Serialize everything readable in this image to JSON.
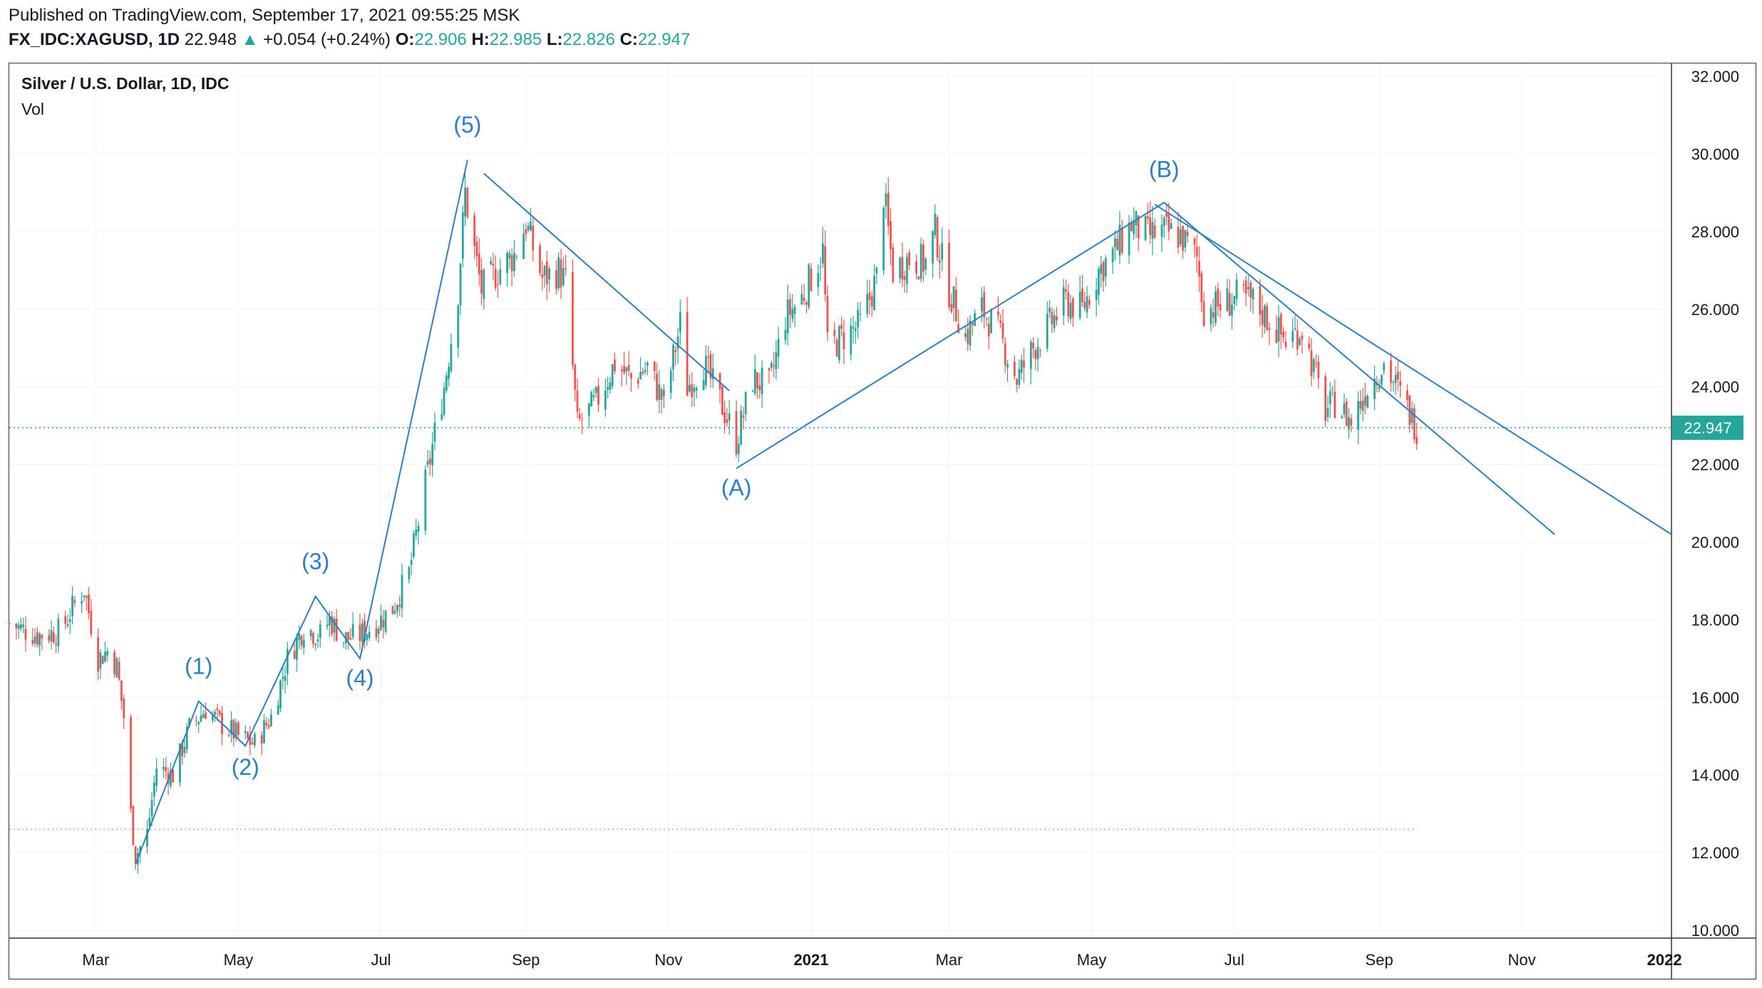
{
  "header": {
    "published": "Published on TradingView.com, September 17, 2021 09:55:25 MSK",
    "symbol_line": "FX_IDC:XAGUSD, 1D",
    "last": "22.948",
    "change_arrow": "▲",
    "change": "+0.054 (+0.24%)",
    "o_label": "O:",
    "o": "22.906",
    "h_label": "H:",
    "h": "22.985",
    "l_label": "L:",
    "l": "22.826",
    "c_label": "C:",
    "c": "22.947"
  },
  "legend": {
    "title": "Silver / U.S. Dollar, 1D, IDC",
    "vol": "Vol"
  },
  "colors": {
    "up": "#26a69a",
    "down": "#ef5350",
    "wave_line": "#2f7dc2",
    "wave_label": "#2f7dc2",
    "grid": "#f0f3fa",
    "price_line": "#26a69a",
    "lower_line": "#ef9a9a"
  },
  "chart_data": {
    "type": "candlestick",
    "symbol": "XAGUSD",
    "interval": "1D",
    "y_axis": {
      "min": 10,
      "max": 32,
      "ticks": [
        "32.000",
        "30.000",
        "28.000",
        "26.000",
        "24.000",
        "22.000",
        "20.000",
        "18.000",
        "16.000",
        "14.000",
        "12.000",
        "10.000"
      ]
    },
    "x_axis": {
      "labels": [
        {
          "text": "Mar",
          "date": "2020-03-01",
          "bold": false
        },
        {
          "text": "May",
          "date": "2020-05-01",
          "bold": false
        },
        {
          "text": "Jul",
          "date": "2020-07-01",
          "bold": false
        },
        {
          "text": "Sep",
          "date": "2020-09-01",
          "bold": false
        },
        {
          "text": "Nov",
          "date": "2020-11-01",
          "bold": false
        },
        {
          "text": "2021",
          "date": "2021-01-01",
          "bold": true
        },
        {
          "text": "Mar",
          "date": "2021-03-01",
          "bold": false
        },
        {
          "text": "May",
          "date": "2021-05-01",
          "bold": false
        },
        {
          "text": "Jul",
          "date": "2021-07-01",
          "bold": false
        },
        {
          "text": "Sep",
          "date": "2021-09-01",
          "bold": false
        },
        {
          "text": "Nov",
          "date": "2021-11-01",
          "bold": false
        },
        {
          "text": "2022",
          "date": "2022-01-01",
          "bold": true
        }
      ],
      "start": "2020-01-24",
      "end": "2022-01-04"
    },
    "last_price": 22.947,
    "last_price_label": "22.947",
    "lower_level": 12.6,
    "lower_level_end": "2021-09-17",
    "price_path": [
      [
        "2020-01-24",
        17.9
      ],
      [
        "2020-02-05",
        17.6
      ],
      [
        "2020-02-15",
        17.7
      ],
      [
        "2020-02-20",
        18.3
      ],
      [
        "2020-02-25",
        18.8
      ],
      [
        "2020-03-02",
        17.0
      ],
      [
        "2020-03-06",
        17.2
      ],
      [
        "2020-03-10",
        16.8
      ],
      [
        "2020-03-13",
        15.5
      ],
      [
        "2020-03-16",
        13.0
      ],
      [
        "2020-03-18",
        11.9
      ],
      [
        "2020-03-23",
        12.5
      ],
      [
        "2020-03-27",
        14.2
      ],
      [
        "2020-04-03",
        14.0
      ],
      [
        "2020-04-10",
        15.2
      ],
      [
        "2020-04-17",
        15.7
      ],
      [
        "2020-04-24",
        15.3
      ],
      [
        "2020-05-01",
        15.0
      ],
      [
        "2020-05-08",
        14.8
      ],
      [
        "2020-05-15",
        15.5
      ],
      [
        "2020-05-22",
        17.0
      ],
      [
        "2020-05-29",
        17.8
      ],
      [
        "2020-06-05",
        17.6
      ],
      [
        "2020-06-09",
        18.0
      ],
      [
        "2020-06-15",
        17.5
      ],
      [
        "2020-06-22",
        17.6
      ],
      [
        "2020-06-29",
        17.9
      ],
      [
        "2020-07-06",
        18.3
      ],
      [
        "2020-07-13",
        19.2
      ],
      [
        "2020-07-20",
        21.5
      ],
      [
        "2020-07-24",
        22.8
      ],
      [
        "2020-07-28",
        24.0
      ],
      [
        "2020-08-03",
        26.5
      ],
      [
        "2020-08-06",
        29.0
      ],
      [
        "2020-08-10",
        27.5
      ],
      [
        "2020-08-13",
        26.5
      ],
      [
        "2020-08-20",
        27.0
      ],
      [
        "2020-08-27",
        27.4
      ],
      [
        "2020-09-01",
        28.2
      ],
      [
        "2020-09-08",
        26.8
      ],
      [
        "2020-09-15",
        27.0
      ],
      [
        "2020-09-18",
        26.7
      ],
      [
        "2020-09-21",
        24.5
      ],
      [
        "2020-09-23",
        23.0
      ],
      [
        "2020-10-01",
        23.6
      ],
      [
        "2020-10-09",
        24.6
      ],
      [
        "2020-10-16",
        24.2
      ],
      [
        "2020-10-23",
        24.5
      ],
      [
        "2020-10-30",
        23.6
      ],
      [
        "2020-11-06",
        25.6
      ],
      [
        "2020-11-09",
        24.0
      ],
      [
        "2020-11-16",
        24.6
      ],
      [
        "2020-11-24",
        23.5
      ],
      [
        "2020-11-30",
        22.6
      ],
      [
        "2020-12-07",
        24.2
      ],
      [
        "2020-12-14",
        24.0
      ],
      [
        "2020-12-21",
        25.8
      ],
      [
        "2020-12-28",
        26.3
      ],
      [
        "2021-01-06",
        27.5
      ],
      [
        "2021-01-08",
        25.0
      ],
      [
        "2021-01-15",
        25.3
      ],
      [
        "2021-01-22",
        25.6
      ],
      [
        "2021-01-29",
        26.8
      ],
      [
        "2021-02-01",
        29.0
      ],
      [
        "2021-02-05",
        27.0
      ],
      [
        "2021-02-12",
        27.3
      ],
      [
        "2021-02-19",
        27.2
      ],
      [
        "2021-02-23",
        28.0
      ],
      [
        "2021-03-01",
        26.5
      ],
      [
        "2021-03-08",
        25.3
      ],
      [
        "2021-03-15",
        26.0
      ],
      [
        "2021-03-22",
        25.4
      ],
      [
        "2021-03-30",
        24.2
      ],
      [
        "2021-04-06",
        25.0
      ],
      [
        "2021-04-13",
        25.6
      ],
      [
        "2021-04-20",
        26.2
      ],
      [
        "2021-04-27",
        26.0
      ],
      [
        "2021-05-04",
        27.0
      ],
      [
        "2021-05-11",
        27.5
      ],
      [
        "2021-05-18",
        28.2
      ],
      [
        "2021-05-25",
        27.9
      ],
      [
        "2021-06-01",
        28.0
      ],
      [
        "2021-06-08",
        27.9
      ],
      [
        "2021-06-15",
        27.3
      ],
      [
        "2021-06-18",
        26.0
      ],
      [
        "2021-06-25",
        26.1
      ],
      [
        "2021-07-02",
        26.3
      ],
      [
        "2021-07-09",
        26.2
      ],
      [
        "2021-07-16",
        25.7
      ],
      [
        "2021-07-23",
        25.2
      ],
      [
        "2021-07-30",
        25.5
      ],
      [
        "2021-08-06",
        24.0
      ],
      [
        "2021-08-09",
        23.4
      ],
      [
        "2021-08-13",
        23.6
      ],
      [
        "2021-08-20",
        23.1
      ],
      [
        "2021-08-27",
        24.0
      ],
      [
        "2021-09-03",
        24.6
      ],
      [
        "2021-09-10",
        23.8
      ],
      [
        "2021-09-17",
        22.95
      ]
    ],
    "waves": [
      {
        "points": [
          [
            "2020-03-18",
            11.7
          ],
          [
            "2020-04-14",
            15.9
          ],
          [
            "2020-05-04",
            14.75
          ],
          [
            "2020-06-03",
            18.6
          ],
          [
            "2020-06-22",
            17.0
          ],
          [
            "2020-08-07",
            29.85
          ]
        ],
        "labels": [
          {
            "text": "(1)",
            "date": "2020-04-14",
            "y": 16.6
          },
          {
            "text": "(2)",
            "date": "2020-05-04",
            "y": 14.0
          },
          {
            "text": "(3)",
            "date": "2020-06-03",
            "y": 19.3
          },
          {
            "text": "(4)",
            "date": "2020-06-22",
            "y": 16.3
          },
          {
            "text": "(5)",
            "date": "2020-08-07",
            "y": 30.55
          }
        ]
      },
      {
        "points": [
          [
            "2020-11-30",
            21.9
          ],
          [
            "2021-06-01",
            28.75
          ],
          [
            "2021-11-15",
            20.2
          ]
        ],
        "labels": [
          {
            "text": "(A)",
            "date": "2020-11-30",
            "y": 21.2
          },
          {
            "text": "(B)",
            "date": "2021-06-01",
            "y": 29.4
          }
        ]
      },
      {
        "points": [
          [
            "2020-08-14",
            29.5
          ],
          [
            "2020-11-27",
            23.9
          ]
        ],
        "labels": []
      }
    ],
    "trendline": {
      "from": [
        "2021-05-28",
        28.7
      ],
      "to": [
        "2022-01-04",
        20.2
      ]
    }
  }
}
